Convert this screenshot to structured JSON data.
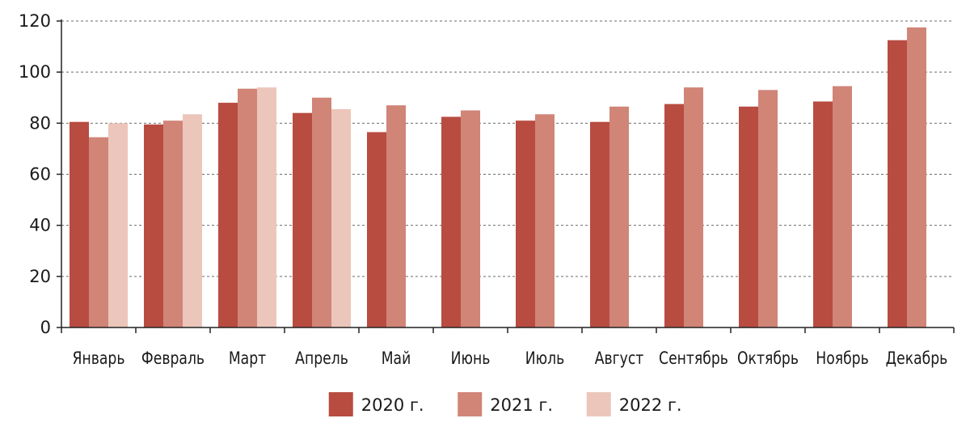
{
  "chart_data": {
    "type": "bar",
    "title": "",
    "xlabel": "",
    "ylabel": "",
    "ylim": [
      0,
      120
    ],
    "yticks": [
      0,
      20,
      40,
      60,
      80,
      100,
      120
    ],
    "grid": true,
    "legend_position": "bottom",
    "categories": [
      "Январь",
      "Февраль",
      "Март",
      "Апрель",
      "Май",
      "Июнь",
      "Июль",
      "Август",
      "Сентябрь",
      "Октябрь",
      "Ноябрь",
      "Декабрь"
    ],
    "series": [
      {
        "name": "2020 г.",
        "color": "#b84c41",
        "values": [
          80.5,
          79.5,
          88,
          84,
          76.5,
          82.5,
          81,
          80.5,
          87.5,
          86.5,
          88.5,
          112.5
        ]
      },
      {
        "name": "2021 г.",
        "color": "#d08577",
        "values": [
          74.5,
          81,
          93.5,
          90,
          87,
          85,
          83.5,
          86.5,
          94,
          93,
          94.5,
          117.5
        ]
      },
      {
        "name": "2022 г.",
        "color": "#ecc6bb",
        "values": [
          80,
          83.5,
          94,
          85.5,
          null,
          null,
          null,
          null,
          null,
          null,
          null,
          null
        ]
      }
    ]
  }
}
